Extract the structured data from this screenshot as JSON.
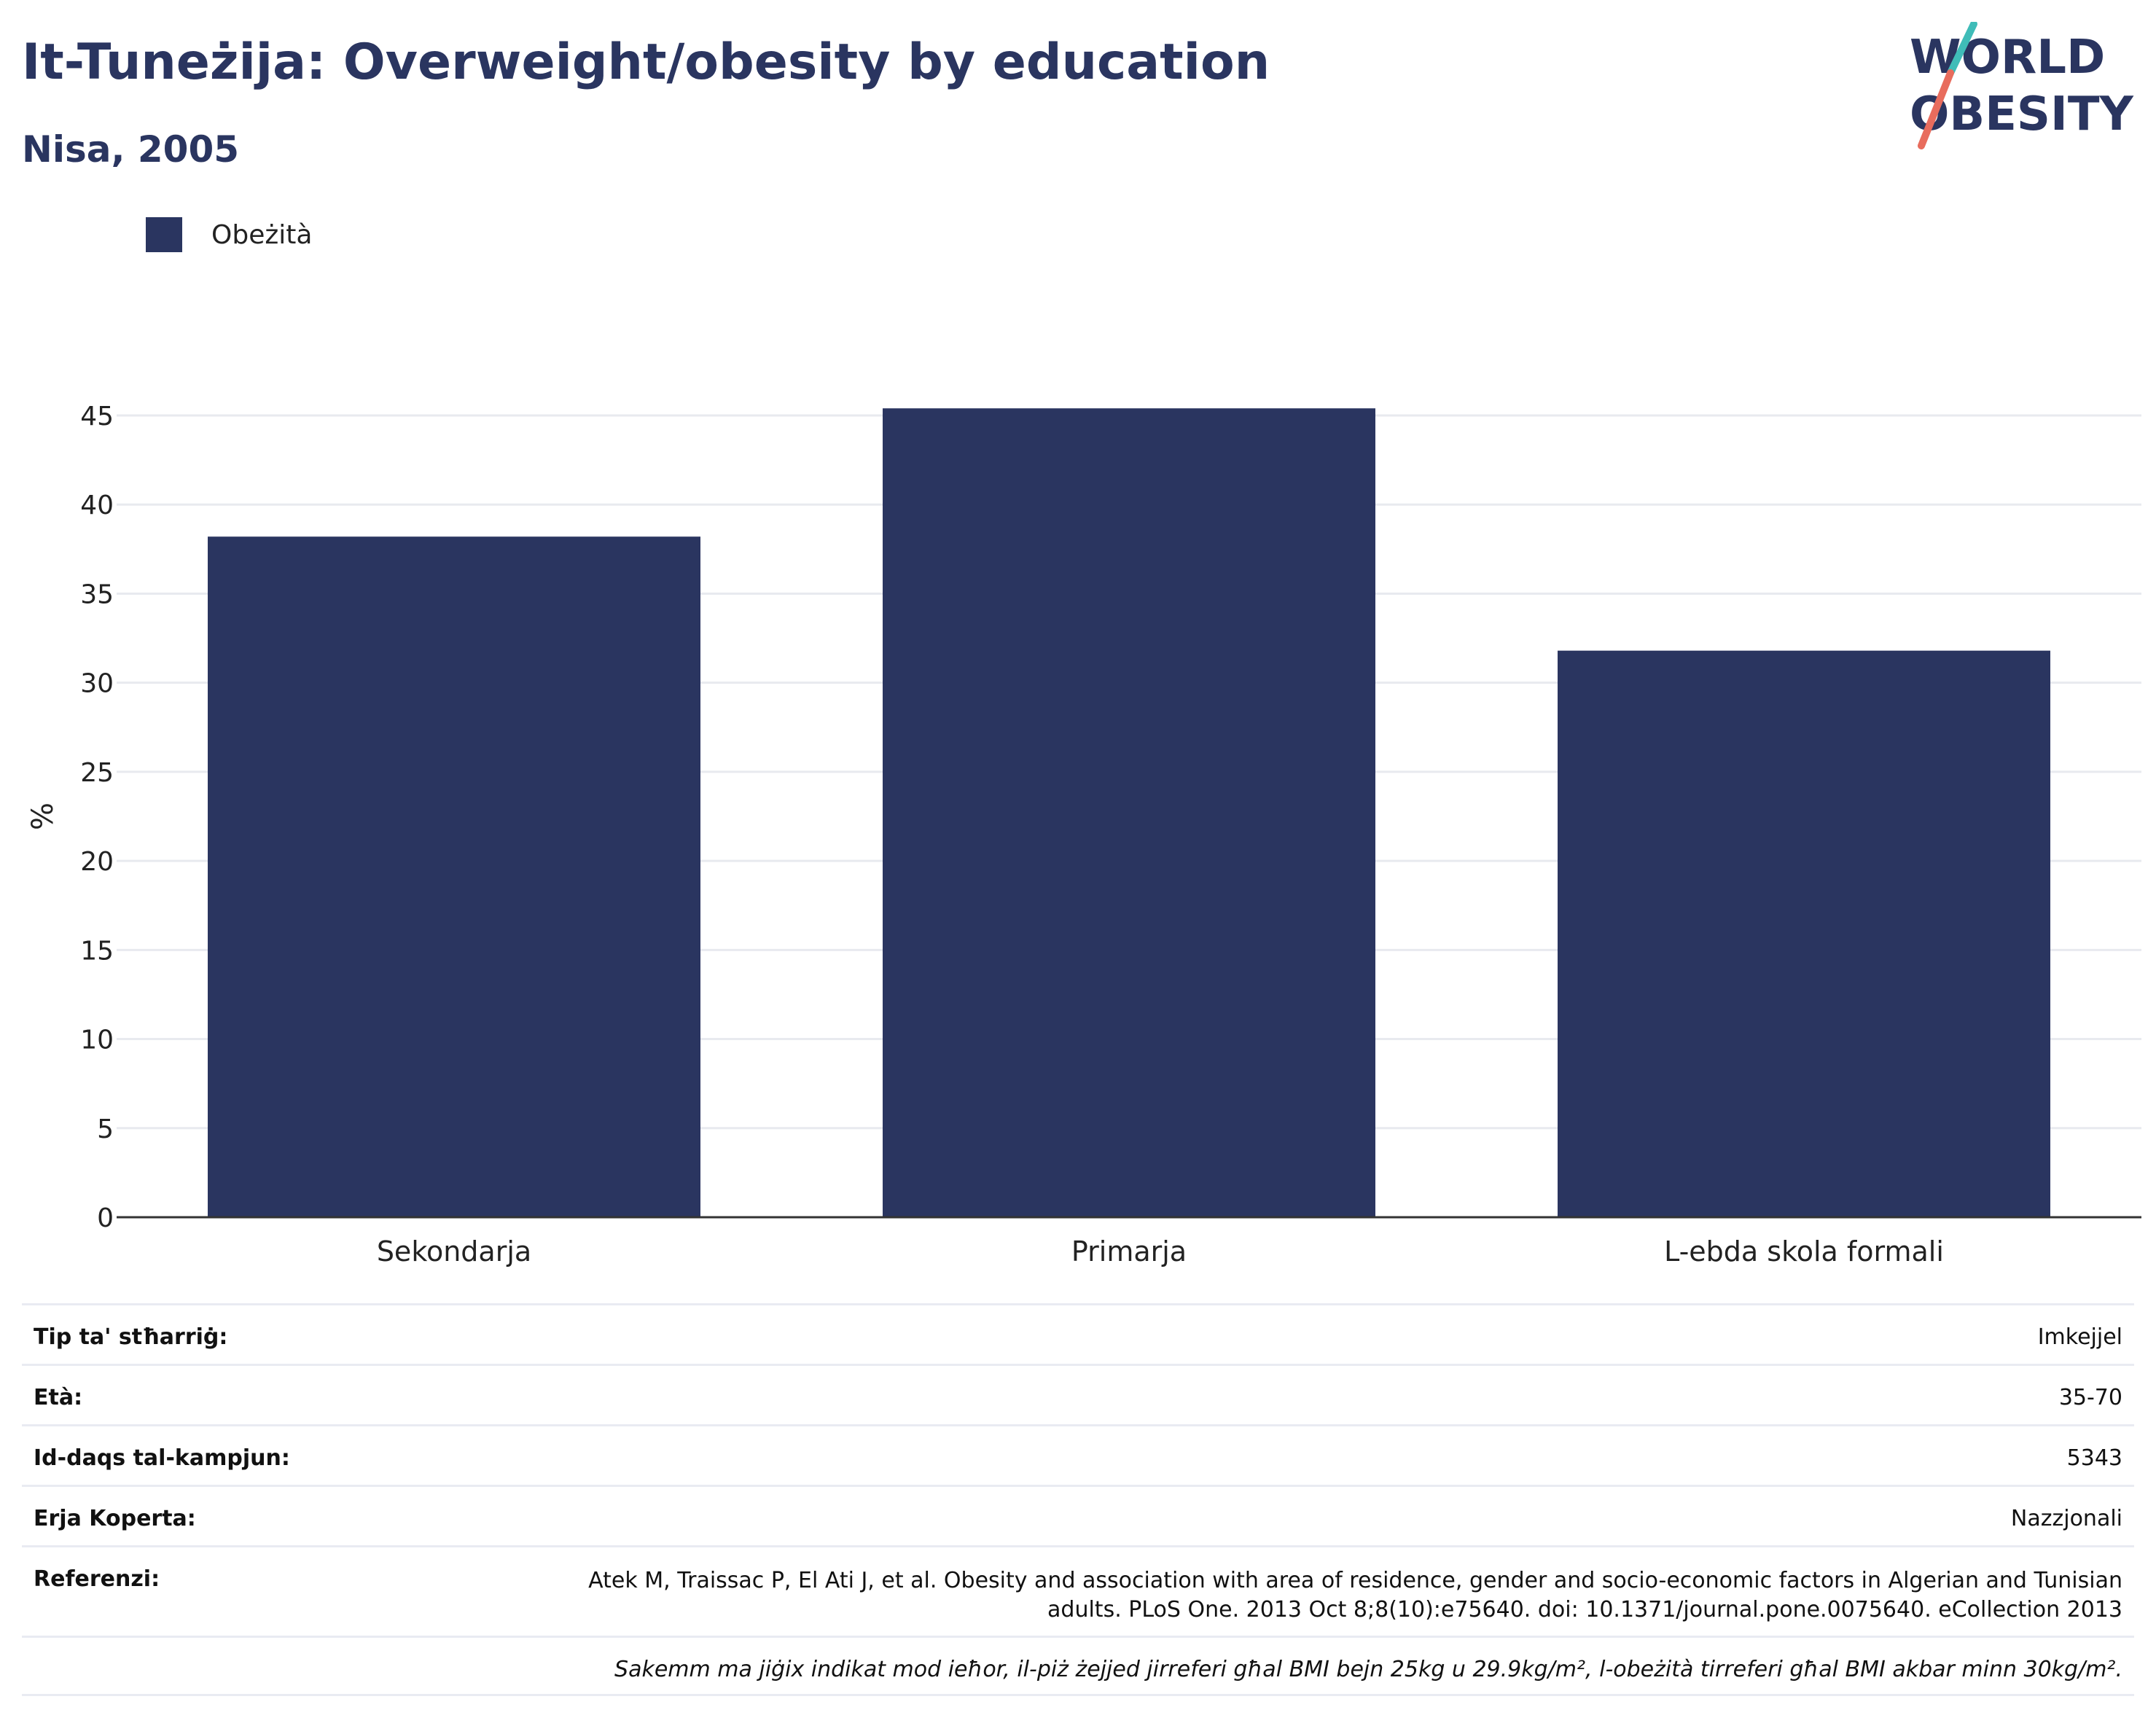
{
  "header": {
    "title": "It-Tuneżija: Overweight/obesity by education",
    "subtitle": "Nisa, 2005"
  },
  "logo": {
    "line1": "WORLD",
    "line2": "OBESITY",
    "colors": {
      "text": "#2a3560",
      "slash_top": "#3fbcb8",
      "slash_bottom": "#e86c5d"
    }
  },
  "legend": {
    "items": [
      {
        "label": "Obeżità",
        "color": "#2a3560"
      }
    ]
  },
  "chart_data": {
    "type": "bar",
    "categories": [
      "Sekondarja",
      "Primarja",
      "L-ebda skola formali"
    ],
    "series": [
      {
        "name": "Obeżità",
        "values": [
          38.2,
          45.4,
          31.8
        ],
        "color": "#2a3560"
      }
    ],
    "title": "It-Tuneżija: Overweight/obesity by education",
    "subtitle": "Nisa, 2005",
    "xlabel": "",
    "ylabel": "%",
    "ylim": [
      0,
      45
    ],
    "yticks": [
      0,
      5,
      10,
      15,
      20,
      25,
      30,
      35,
      40,
      45
    ],
    "grid": true,
    "legend_position": "top-left"
  },
  "info": {
    "rows": [
      {
        "label": "Tip ta' stħarriġ:",
        "value": "Imkejjel"
      },
      {
        "label": "Età:",
        "value": "35-70"
      },
      {
        "label": "Id-daqs tal-kampjun:",
        "value": "5343"
      },
      {
        "label": "Erja Koperta:",
        "value": "Nazzjonali"
      }
    ],
    "reference": {
      "label": "Referenzi:",
      "value": "Atek M, Traissac P, El Ati J, et al. Obesity and association with area of residence, gender and socio-economic factors in Algerian and Tunisian adults. PLoS One. 2013 Oct 8;8(10):e75640. doi: 10.1371/journal.pone.0075640. eCollection 2013"
    },
    "note": "Sakemm ma jiġix indikat mod ieħor, il-piż żejjed jirreferi għal BMI bejn 25kg u 29.9kg/m², l-obeżità tirreferi għal BMI akbar minn 30kg/m²."
  }
}
